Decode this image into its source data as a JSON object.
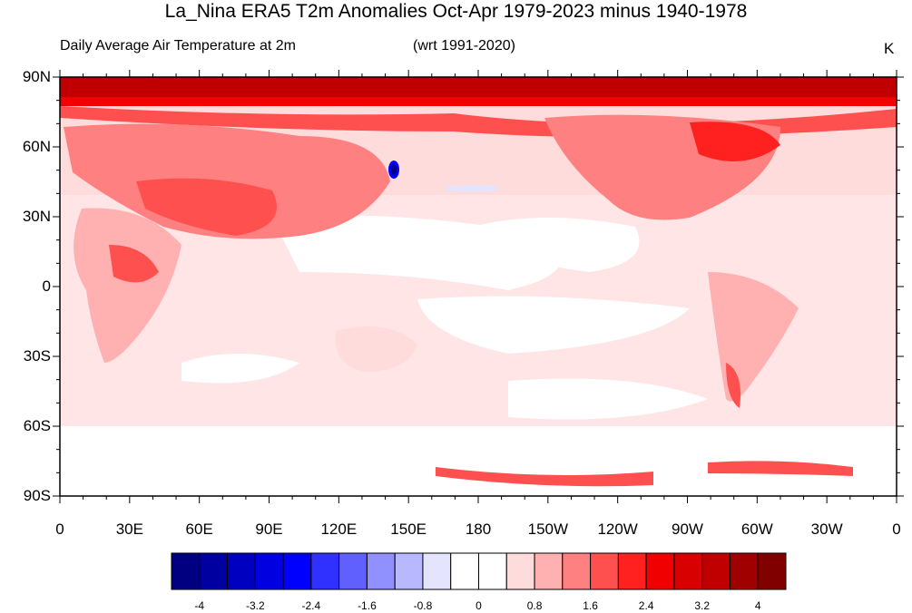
{
  "title": "La_Nina ERA5 T2m Anomalies Oct-Apr 1979-2023 minus 1940-1978",
  "subtitle_left": "Daily Average Air Temperature at 2m",
  "subtitle_center": "(wrt 1991-2020)",
  "units": "K",
  "map": {
    "lat_labels": [
      "90N",
      "60N",
      "30N",
      "0",
      "30S",
      "60S",
      "90S"
    ],
    "lon_labels": [
      "0",
      "30E",
      "60E",
      "90E",
      "120E",
      "150E",
      "180",
      "150W",
      "120W",
      "90W",
      "60W",
      "30W",
      "0"
    ]
  },
  "colorbar": {
    "colors": [
      "#000080",
      "#0000a0",
      "#0000c0",
      "#0000e0",
      "#0000ff",
      "#3030ff",
      "#6060ff",
      "#9090ff",
      "#b8b8ff",
      "#e4e4ff",
      "#ffffff",
      "#ffffff",
      "#ffdcdc",
      "#ffb0b0",
      "#ff8080",
      "#ff5050",
      "#ff2020",
      "#f00000",
      "#d80000",
      "#c00000",
      "#a00000",
      "#800000"
    ],
    "labels": [
      "-4",
      "-3.2",
      "-2.4",
      "-1.6",
      "-0.8",
      "0",
      "0.8",
      "1.6",
      "2.4",
      "3.2",
      "4"
    ]
  }
}
